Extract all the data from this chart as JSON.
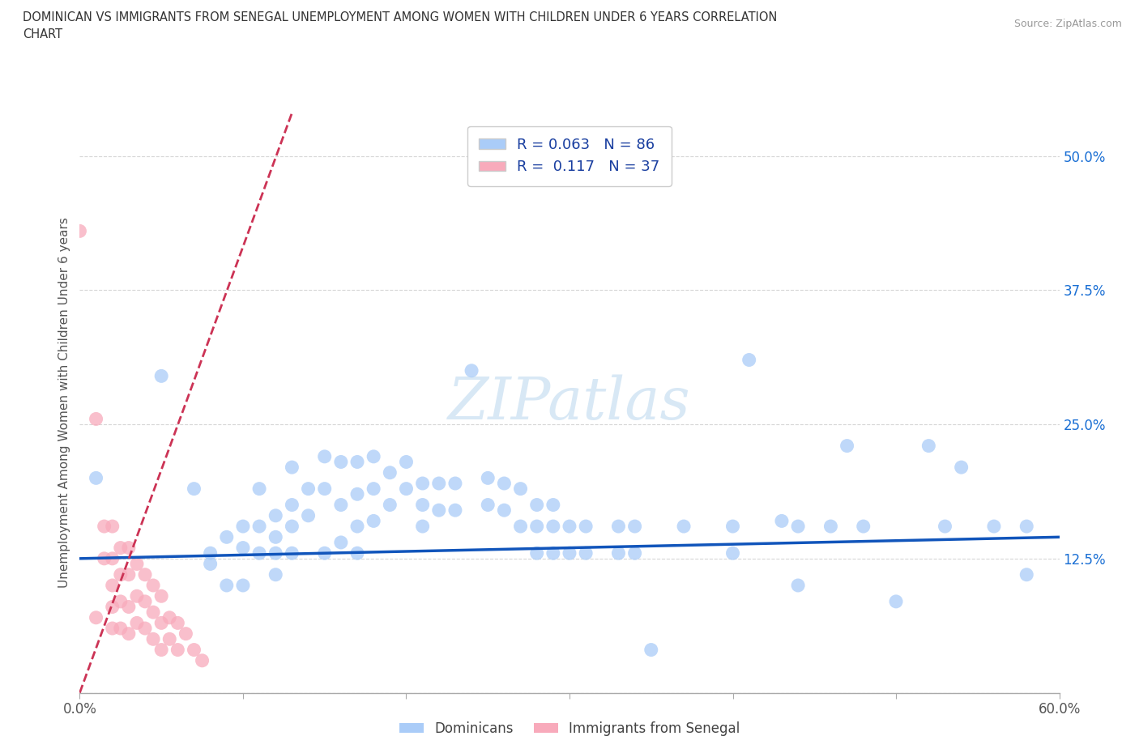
{
  "title": "DOMINICAN VS IMMIGRANTS FROM SENEGAL UNEMPLOYMENT AMONG WOMEN WITH CHILDREN UNDER 6 YEARS CORRELATION\nCHART",
  "source": "Source: ZipAtlas.com",
  "ylabel_label": "Unemployment Among Women with Children Under 6 years",
  "xlim": [
    0.0,
    0.6
  ],
  "ylim": [
    0.0,
    0.54
  ],
  "xticks": [
    0.0,
    0.1,
    0.2,
    0.3,
    0.4,
    0.5,
    0.6
  ],
  "xticklabels": [
    "0.0%",
    "",
    "",
    "",
    "",
    "",
    "60.0%"
  ],
  "yticks": [
    0.0,
    0.125,
    0.25,
    0.375,
    0.5
  ],
  "yticklabels": [
    "",
    "12.5%",
    "25.0%",
    "37.5%",
    "50.0%"
  ],
  "R_dominican": 0.063,
  "N_dominican": 86,
  "R_senegal": 0.117,
  "N_senegal": 37,
  "dominican_color": "#aaccf8",
  "senegal_color": "#f8aabb",
  "trend_dominican_color": "#1155bb",
  "trend_senegal_color": "#cc3355",
  "watermark_color": "#d8e8f5",
  "dominican_scatter": [
    [
      0.01,
      0.2
    ],
    [
      0.05,
      0.295
    ],
    [
      0.07,
      0.19
    ],
    [
      0.08,
      0.13
    ],
    [
      0.08,
      0.12
    ],
    [
      0.09,
      0.145
    ],
    [
      0.09,
      0.1
    ],
    [
      0.1,
      0.155
    ],
    [
      0.1,
      0.135
    ],
    [
      0.1,
      0.1
    ],
    [
      0.11,
      0.19
    ],
    [
      0.11,
      0.155
    ],
    [
      0.11,
      0.13
    ],
    [
      0.12,
      0.165
    ],
    [
      0.12,
      0.145
    ],
    [
      0.12,
      0.13
    ],
    [
      0.12,
      0.11
    ],
    [
      0.13,
      0.21
    ],
    [
      0.13,
      0.175
    ],
    [
      0.13,
      0.155
    ],
    [
      0.13,
      0.13
    ],
    [
      0.14,
      0.19
    ],
    [
      0.14,
      0.165
    ],
    [
      0.15,
      0.22
    ],
    [
      0.15,
      0.19
    ],
    [
      0.15,
      0.13
    ],
    [
      0.16,
      0.215
    ],
    [
      0.16,
      0.175
    ],
    [
      0.16,
      0.14
    ],
    [
      0.17,
      0.215
    ],
    [
      0.17,
      0.185
    ],
    [
      0.17,
      0.155
    ],
    [
      0.17,
      0.13
    ],
    [
      0.18,
      0.22
    ],
    [
      0.18,
      0.19
    ],
    [
      0.18,
      0.16
    ],
    [
      0.19,
      0.205
    ],
    [
      0.19,
      0.175
    ],
    [
      0.2,
      0.215
    ],
    [
      0.2,
      0.19
    ],
    [
      0.21,
      0.195
    ],
    [
      0.21,
      0.175
    ],
    [
      0.21,
      0.155
    ],
    [
      0.22,
      0.195
    ],
    [
      0.22,
      0.17
    ],
    [
      0.23,
      0.195
    ],
    [
      0.23,
      0.17
    ],
    [
      0.24,
      0.3
    ],
    [
      0.25,
      0.2
    ],
    [
      0.25,
      0.175
    ],
    [
      0.26,
      0.195
    ],
    [
      0.26,
      0.17
    ],
    [
      0.27,
      0.19
    ],
    [
      0.27,
      0.155
    ],
    [
      0.28,
      0.175
    ],
    [
      0.28,
      0.155
    ],
    [
      0.28,
      0.13
    ],
    [
      0.29,
      0.175
    ],
    [
      0.29,
      0.155
    ],
    [
      0.29,
      0.13
    ],
    [
      0.3,
      0.155
    ],
    [
      0.3,
      0.13
    ],
    [
      0.31,
      0.155
    ],
    [
      0.31,
      0.13
    ],
    [
      0.33,
      0.155
    ],
    [
      0.33,
      0.13
    ],
    [
      0.34,
      0.155
    ],
    [
      0.34,
      0.13
    ],
    [
      0.35,
      0.04
    ],
    [
      0.37,
      0.155
    ],
    [
      0.4,
      0.155
    ],
    [
      0.4,
      0.13
    ],
    [
      0.41,
      0.31
    ],
    [
      0.43,
      0.16
    ],
    [
      0.44,
      0.155
    ],
    [
      0.44,
      0.1
    ],
    [
      0.46,
      0.155
    ],
    [
      0.47,
      0.23
    ],
    [
      0.48,
      0.155
    ],
    [
      0.5,
      0.085
    ],
    [
      0.52,
      0.23
    ],
    [
      0.53,
      0.155
    ],
    [
      0.54,
      0.21
    ],
    [
      0.56,
      0.155
    ],
    [
      0.58,
      0.155
    ],
    [
      0.58,
      0.11
    ]
  ],
  "senegal_scatter": [
    [
      0.0,
      0.43
    ],
    [
      0.01,
      0.255
    ],
    [
      0.01,
      0.07
    ],
    [
      0.015,
      0.155
    ],
    [
      0.015,
      0.125
    ],
    [
      0.02,
      0.155
    ],
    [
      0.02,
      0.125
    ],
    [
      0.02,
      0.1
    ],
    [
      0.02,
      0.08
    ],
    [
      0.02,
      0.06
    ],
    [
      0.025,
      0.135
    ],
    [
      0.025,
      0.11
    ],
    [
      0.025,
      0.085
    ],
    [
      0.025,
      0.06
    ],
    [
      0.03,
      0.135
    ],
    [
      0.03,
      0.11
    ],
    [
      0.03,
      0.08
    ],
    [
      0.03,
      0.055
    ],
    [
      0.035,
      0.12
    ],
    [
      0.035,
      0.09
    ],
    [
      0.035,
      0.065
    ],
    [
      0.04,
      0.11
    ],
    [
      0.04,
      0.085
    ],
    [
      0.04,
      0.06
    ],
    [
      0.045,
      0.1
    ],
    [
      0.045,
      0.075
    ],
    [
      0.045,
      0.05
    ],
    [
      0.05,
      0.09
    ],
    [
      0.05,
      0.065
    ],
    [
      0.05,
      0.04
    ],
    [
      0.055,
      0.07
    ],
    [
      0.055,
      0.05
    ],
    [
      0.06,
      0.065
    ],
    [
      0.06,
      0.04
    ],
    [
      0.065,
      0.055
    ],
    [
      0.07,
      0.04
    ],
    [
      0.075,
      0.03
    ]
  ],
  "trend_dom_x0": 0.0,
  "trend_dom_x1": 0.6,
  "trend_dom_y0": 0.125,
  "trend_dom_y1": 0.145,
  "trend_sen_x0": 0.0,
  "trend_sen_x1": 0.13,
  "trend_sen_y0": 0.0,
  "trend_sen_y1": 0.54
}
